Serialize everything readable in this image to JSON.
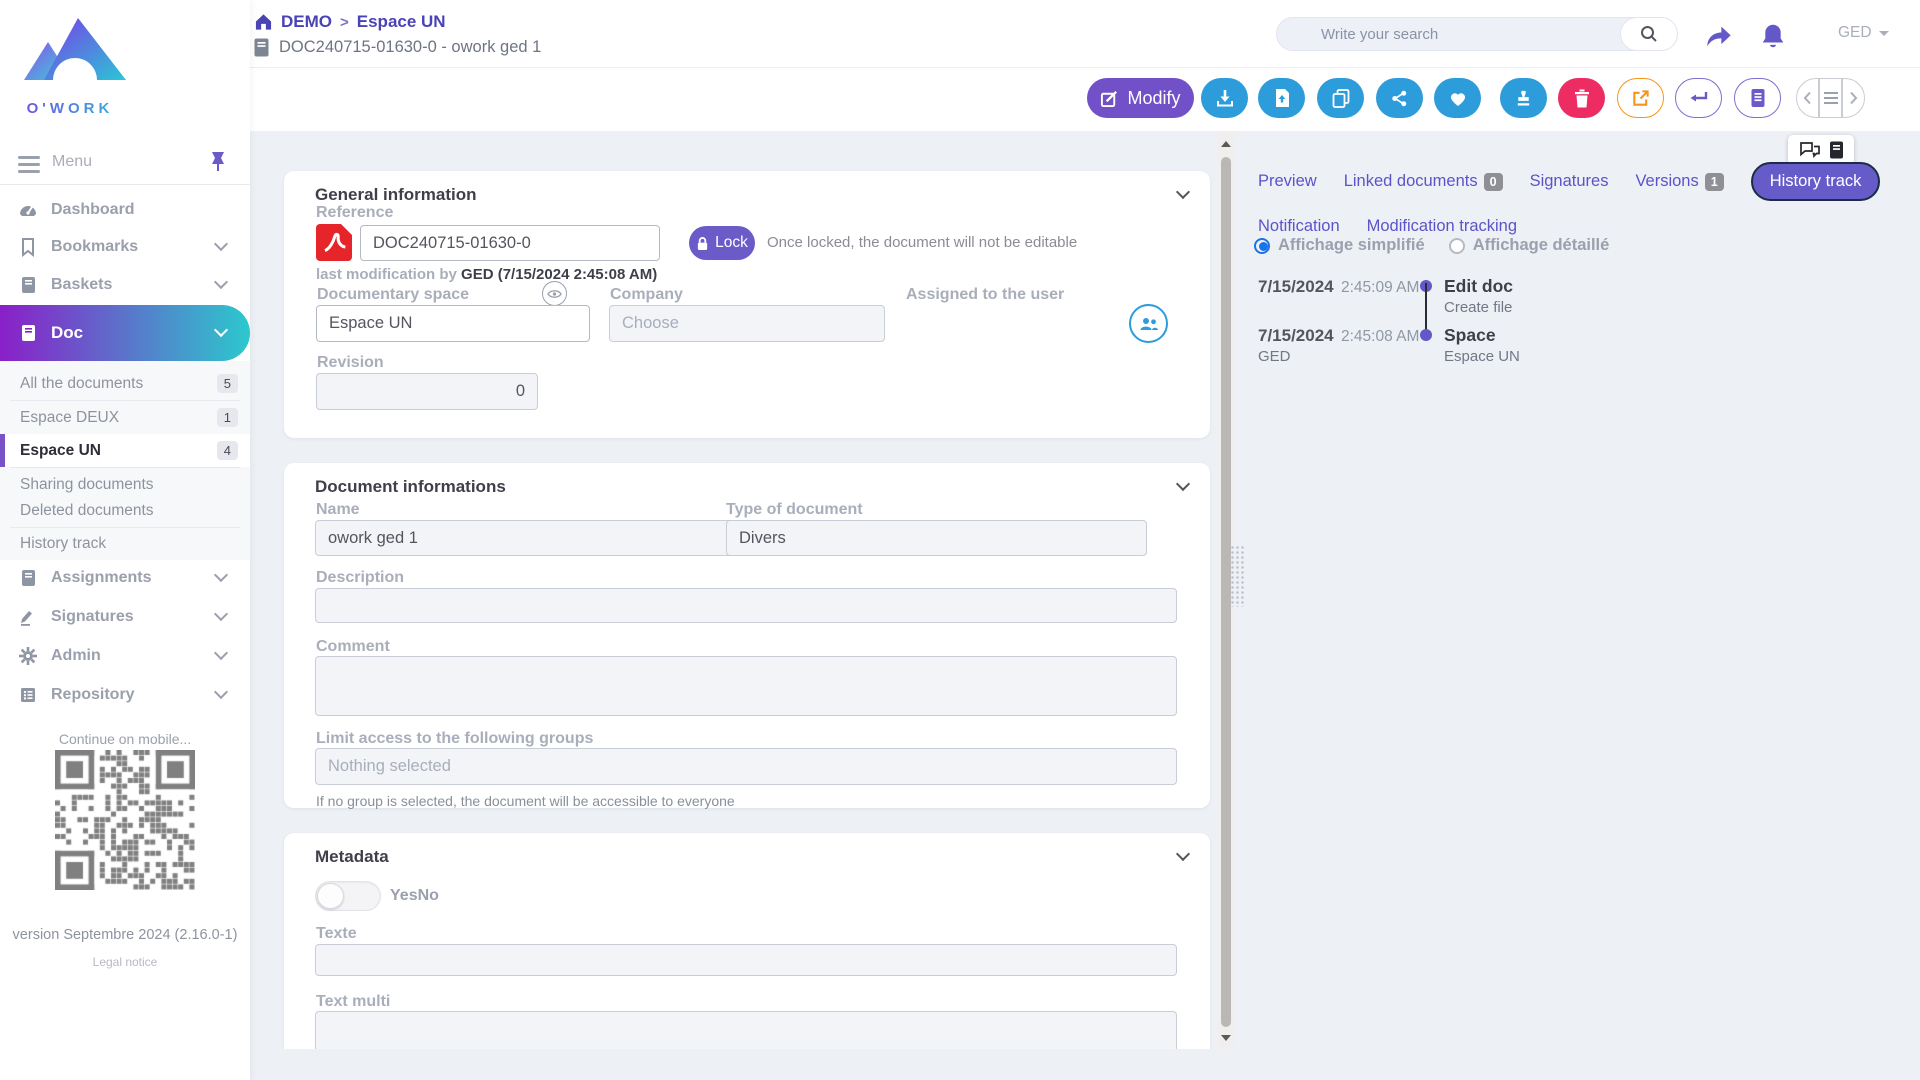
{
  "brand": {
    "logo_text": "O'WORK"
  },
  "header": {
    "breadcrumb": {
      "home": "DEMO",
      "separator": ">",
      "section": "Espace UN"
    },
    "doc_title": "DOC240715-01630-0 - owork ged 1",
    "search_placeholder": "Write your search",
    "user_menu": "GED"
  },
  "toolbar": {
    "modify_label": "Modify"
  },
  "sidebar": {
    "menu_label": "Menu",
    "nav_top": [
      {
        "label": "Dashboard"
      },
      {
        "label": "Bookmarks"
      },
      {
        "label": "Baskets"
      }
    ],
    "doc_item": {
      "label": "Doc"
    },
    "doc_children": [
      {
        "label": "All the documents",
        "badge": "5"
      },
      {
        "label": "Espace DEUX",
        "badge": "1"
      },
      {
        "label": "Espace UN",
        "badge": "4"
      },
      {
        "label": "Sharing documents"
      },
      {
        "label": "Deleted documents"
      },
      {
        "label": "History track"
      }
    ],
    "nav_bottom": [
      {
        "label": "Assignments"
      },
      {
        "label": "Signatures"
      },
      {
        "label": "Admin"
      },
      {
        "label": "Repository"
      }
    ],
    "mobile_hint": "Continue on mobile...",
    "version": "version Septembre 2024 (2.16.0-1)",
    "legal": "Legal notice"
  },
  "general": {
    "title": "General information",
    "reference_label": "Reference",
    "reference_value": "DOC240715-01630-0",
    "lock_label": "Lock",
    "lock_hint": "Once locked, the document will not be editable",
    "last_modification_prefix": "last modification by ",
    "last_modification_value": "GED (7/15/2024 2:45:08 AM)",
    "doc_space_label": "Documentary space",
    "doc_space_value": "Espace UN",
    "company_label": "Company",
    "company_placeholder": "Choose",
    "assigned_label": "Assigned to the user",
    "revision_label": "Revision",
    "revision_value": "0"
  },
  "document_info": {
    "title": "Document informations",
    "name_label": "Name",
    "name_value": "owork ged 1",
    "type_label": "Type of document",
    "type_value": "Divers",
    "description_label": "Description",
    "comment_label": "Comment",
    "groups_label": "Limit access to the following groups",
    "groups_placeholder": "Nothing selected",
    "groups_help": "If no group is selected, the document will be accessible to everyone"
  },
  "metadata": {
    "title": "Metadata",
    "toggle_label": "YesNo",
    "texte_label": "Texte",
    "text_multi_label": "Text multi"
  },
  "right_panel": {
    "tabs": [
      {
        "label": "Preview"
      },
      {
        "label": "Linked documents",
        "badge": "0"
      },
      {
        "label": "Signatures"
      },
      {
        "label": "Versions",
        "badge": "1"
      },
      {
        "label": "History track",
        "active": true
      },
      {
        "label": "Notification"
      },
      {
        "label": "Modification tracking"
      }
    ],
    "radio_simple": "Affichage simplifié",
    "radio_detailed": "Affichage détaillé",
    "timeline": [
      {
        "date": "7/15/2024",
        "time": "2:45:09 AM",
        "by": "",
        "action": "Edit doc",
        "detail": "Create file"
      },
      {
        "date": "7/15/2024",
        "time": "2:45:08 AM",
        "by": "GED",
        "action": "Space",
        "detail": "Espace UN"
      }
    ]
  },
  "colors": {
    "accent_purple": "#6a5bc8",
    "accent_blue": "#2d9cdb",
    "accent_pink": "#ec2c63",
    "accent_orange": "#f7941d",
    "gradient_start": "#8a1fc8",
    "gradient_end": "#2cc8cd",
    "pdf_red": "#e5252a",
    "radio_blue": "#1a73e8"
  }
}
